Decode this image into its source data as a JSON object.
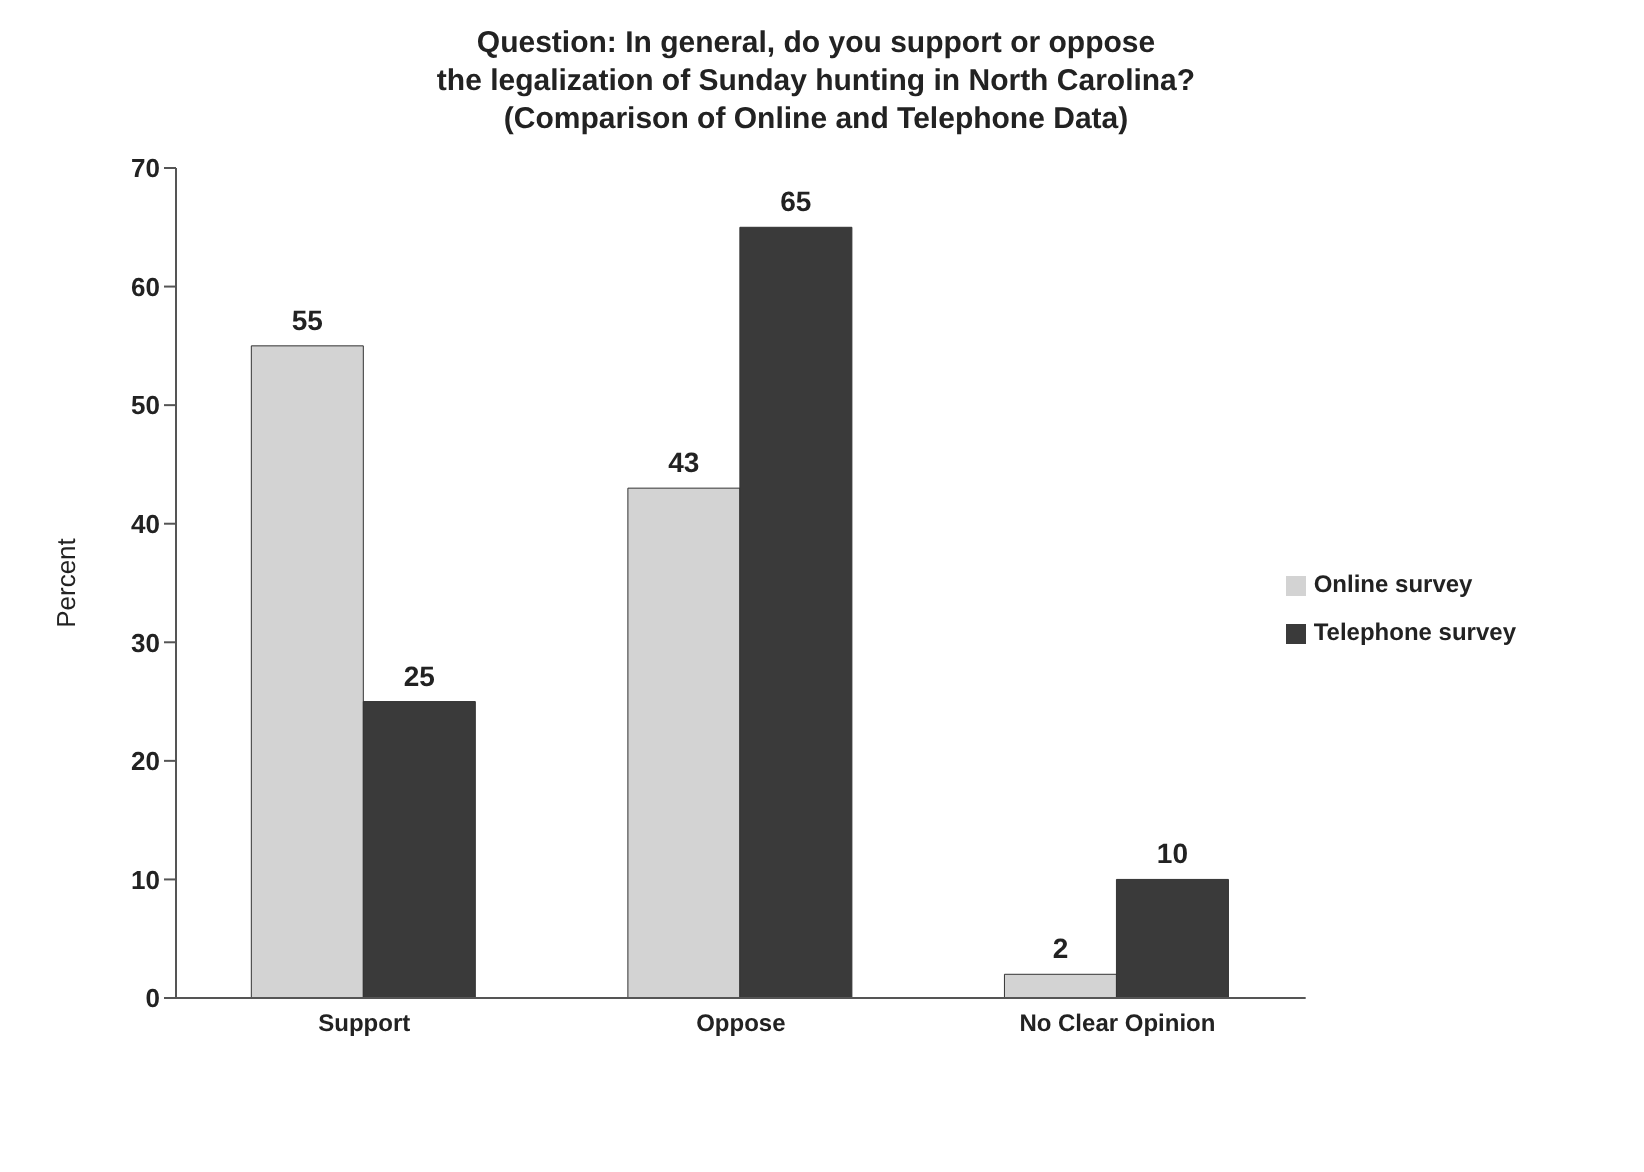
{
  "chart_data": {
    "type": "bar",
    "title": "Question: In general, do you support or oppose\nthe legalization of Sunday hunting in North Carolina?\n(Comparison of Online and Telephone Data)",
    "ylabel": "Percent",
    "categories": [
      "Support",
      "Oppose",
      "No Clear Opinion"
    ],
    "series": [
      {
        "name": "Online survey",
        "color": "#d3d3d3",
        "values": [
          55,
          43,
          2
        ]
      },
      {
        "name": "Telephone survey",
        "color": "#3a3a3a",
        "values": [
          25,
          65,
          10
        ]
      }
    ],
    "ylim": [
      0,
      70
    ],
    "yticks": [
      0,
      10,
      20,
      30,
      40,
      50,
      60,
      70
    ],
    "grid": false,
    "legend": "right",
    "data_labels": true
  }
}
